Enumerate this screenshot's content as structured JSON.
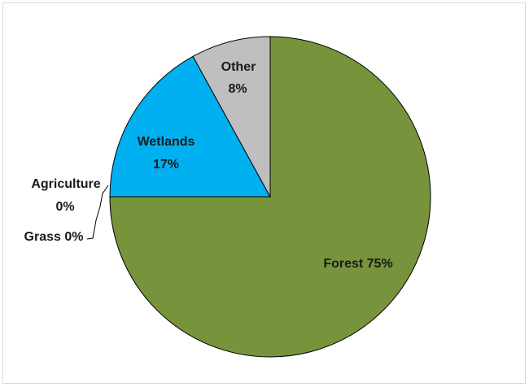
{
  "chart_data": {
    "type": "pie",
    "title": "",
    "slices": [
      {
        "label": "Forest",
        "value": 75,
        "percent_text": "75%",
        "color": "#77933c"
      },
      {
        "label": "Agriculture",
        "value": 0,
        "percent_text": "0%",
        "color": "#ffffff"
      },
      {
        "label": "Grass",
        "value": 0,
        "percent_text": "0%",
        "color": "#ffffff"
      },
      {
        "label": "Wetlands",
        "value": 17,
        "percent_text": "17%",
        "color": "#00b0f0"
      },
      {
        "label": "Other",
        "value": 8,
        "percent_text": "8%",
        "color": "#bfbfbf"
      }
    ],
    "legend": "none",
    "start_angle": "top",
    "direction": "clockwise"
  },
  "labels": {
    "forest": "Forest 75%",
    "agriculture_line1": "Agriculture",
    "agriculture_line2": "0%",
    "grass": "Grass 0%",
    "wetlands_line1": "Wetlands",
    "wetlands_line2": "17%",
    "other_line1": "Other",
    "other_line2": "8%"
  },
  "colors": {
    "slice_outline": "#000000",
    "frame_border": "#d9d9d9"
  }
}
